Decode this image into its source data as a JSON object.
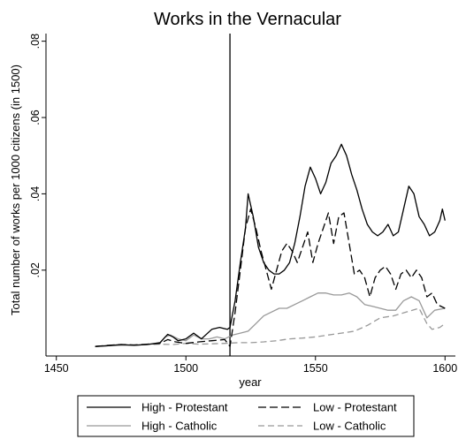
{
  "chart_data": {
    "type": "line",
    "title": "Works in the Vernacular",
    "xlabel": "year",
    "ylabel": "Total number of works per 1000 citizens (in 1500)",
    "xlim": [
      1446,
      1604
    ],
    "ylim": [
      -0.0025,
      0.082
    ],
    "x_ticks": [
      1450,
      1500,
      1550,
      1600
    ],
    "x_tick_labels": [
      "1450",
      "1500",
      "1550",
      "1600"
    ],
    "y_ticks": [
      0.02,
      0.04,
      0.06,
      0.08
    ],
    "y_tick_labels": [
      ".02",
      ".04",
      ".06",
      ".08"
    ],
    "grid": false,
    "vertical_reference_line": 1517,
    "legend_position": "bottom",
    "series": [
      {
        "name": "High - Protestant",
        "color": "#000000",
        "dash": "solid",
        "x": [
          1465,
          1470,
          1475,
          1480,
          1485,
          1490,
          1493,
          1495,
          1497,
          1500,
          1503,
          1506,
          1510,
          1513,
          1516,
          1517,
          1519,
          1521,
          1523,
          1524,
          1526,
          1528,
          1530,
          1532,
          1534,
          1536,
          1538,
          1540,
          1542,
          1544,
          1546,
          1548,
          1550,
          1552,
          1554,
          1556,
          1558,
          1560,
          1562,
          1564,
          1566,
          1568,
          1570,
          1572,
          1574,
          1576,
          1578,
          1580,
          1582,
          1584,
          1586,
          1588,
          1590,
          1592,
          1594,
          1596,
          1598,
          1599,
          1600
        ],
        "y": [
          0.0,
          0.0002,
          0.0005,
          0.0003,
          0.0005,
          0.001,
          0.0032,
          0.0025,
          0.0015,
          0.002,
          0.0035,
          0.002,
          0.0045,
          0.005,
          0.0045,
          0.005,
          0.012,
          0.022,
          0.031,
          0.04,
          0.034,
          0.026,
          0.022,
          0.02,
          0.019,
          0.019,
          0.02,
          0.022,
          0.027,
          0.034,
          0.042,
          0.047,
          0.044,
          0.04,
          0.043,
          0.048,
          0.05,
          0.053,
          0.05,
          0.045,
          0.041,
          0.036,
          0.032,
          0.03,
          0.029,
          0.03,
          0.032,
          0.029,
          0.03,
          0.036,
          0.042,
          0.04,
          0.034,
          0.032,
          0.029,
          0.03,
          0.033,
          0.036,
          0.033
        ]
      },
      {
        "name": "Low - Protestant",
        "color": "#000000",
        "dash": "long-dash",
        "x": [
          1465,
          1470,
          1475,
          1480,
          1485,
          1490,
          1493,
          1496,
          1500,
          1505,
          1510,
          1515,
          1517,
          1519,
          1521,
          1523,
          1525,
          1527,
          1529,
          1531,
          1533,
          1535,
          1537,
          1539,
          1541,
          1543,
          1545,
          1547,
          1549,
          1551,
          1553,
          1555,
          1557,
          1559,
          1561,
          1563,
          1565,
          1567,
          1569,
          1571,
          1573,
          1575,
          1577,
          1579,
          1581,
          1583,
          1585,
          1587,
          1589,
          1591,
          1593,
          1595,
          1597,
          1600
        ],
        "y": [
          0.0,
          0.0003,
          0.0005,
          0.0004,
          0.0006,
          0.0008,
          0.0018,
          0.0012,
          0.0008,
          0.0012,
          0.0015,
          0.0018,
          0.0,
          0.009,
          0.02,
          0.031,
          0.036,
          0.031,
          0.025,
          0.02,
          0.015,
          0.02,
          0.025,
          0.027,
          0.025,
          0.022,
          0.026,
          0.03,
          0.022,
          0.027,
          0.031,
          0.035,
          0.027,
          0.034,
          0.035,
          0.027,
          0.019,
          0.02,
          0.018,
          0.013,
          0.018,
          0.02,
          0.021,
          0.019,
          0.015,
          0.019,
          0.02,
          0.018,
          0.02,
          0.018,
          0.013,
          0.014,
          0.011,
          0.01
        ]
      },
      {
        "name": "High - Catholic",
        "color": "#999999",
        "dash": "solid",
        "x": [
          1465,
          1470,
          1475,
          1480,
          1485,
          1490,
          1492,
          1494,
          1497,
          1500,
          1503,
          1506,
          1509,
          1512,
          1515,
          1518,
          1521,
          1524,
          1527,
          1530,
          1533,
          1536,
          1539,
          1542,
          1545,
          1548,
          1551,
          1554,
          1557,
          1560,
          1563,
          1566,
          1569,
          1572,
          1575,
          1578,
          1581,
          1584,
          1587,
          1590,
          1593,
          1596,
          1600
        ],
        "y": [
          0.0,
          0.0002,
          0.0003,
          0.0003,
          0.0005,
          0.0008,
          0.0025,
          0.003,
          0.002,
          0.0015,
          0.003,
          0.002,
          0.002,
          0.0025,
          0.002,
          0.003,
          0.0035,
          0.004,
          0.006,
          0.008,
          0.009,
          0.01,
          0.01,
          0.011,
          0.012,
          0.013,
          0.014,
          0.014,
          0.0135,
          0.0135,
          0.014,
          0.013,
          0.011,
          0.0105,
          0.01,
          0.0095,
          0.0095,
          0.012,
          0.013,
          0.012,
          0.0075,
          0.0095,
          0.01
        ]
      },
      {
        "name": "Low - Catholic",
        "color": "#999999",
        "dash": "dash",
        "x": [
          1465,
          1470,
          1475,
          1480,
          1485,
          1490,
          1495,
          1500,
          1505,
          1510,
          1515,
          1520,
          1525,
          1530,
          1535,
          1540,
          1545,
          1550,
          1555,
          1560,
          1565,
          1570,
          1575,
          1580,
          1585,
          1590,
          1593,
          1595,
          1598,
          1600
        ],
        "y": [
          0.0,
          0.0002,
          0.0003,
          0.0004,
          0.0005,
          0.0006,
          0.0005,
          0.0008,
          0.0006,
          0.0007,
          0.0008,
          0.001,
          0.001,
          0.0012,
          0.0015,
          0.002,
          0.0022,
          0.0025,
          0.003,
          0.0035,
          0.004,
          0.0055,
          0.0075,
          0.008,
          0.009,
          0.01,
          0.006,
          0.0045,
          0.005,
          0.006
        ]
      }
    ]
  }
}
